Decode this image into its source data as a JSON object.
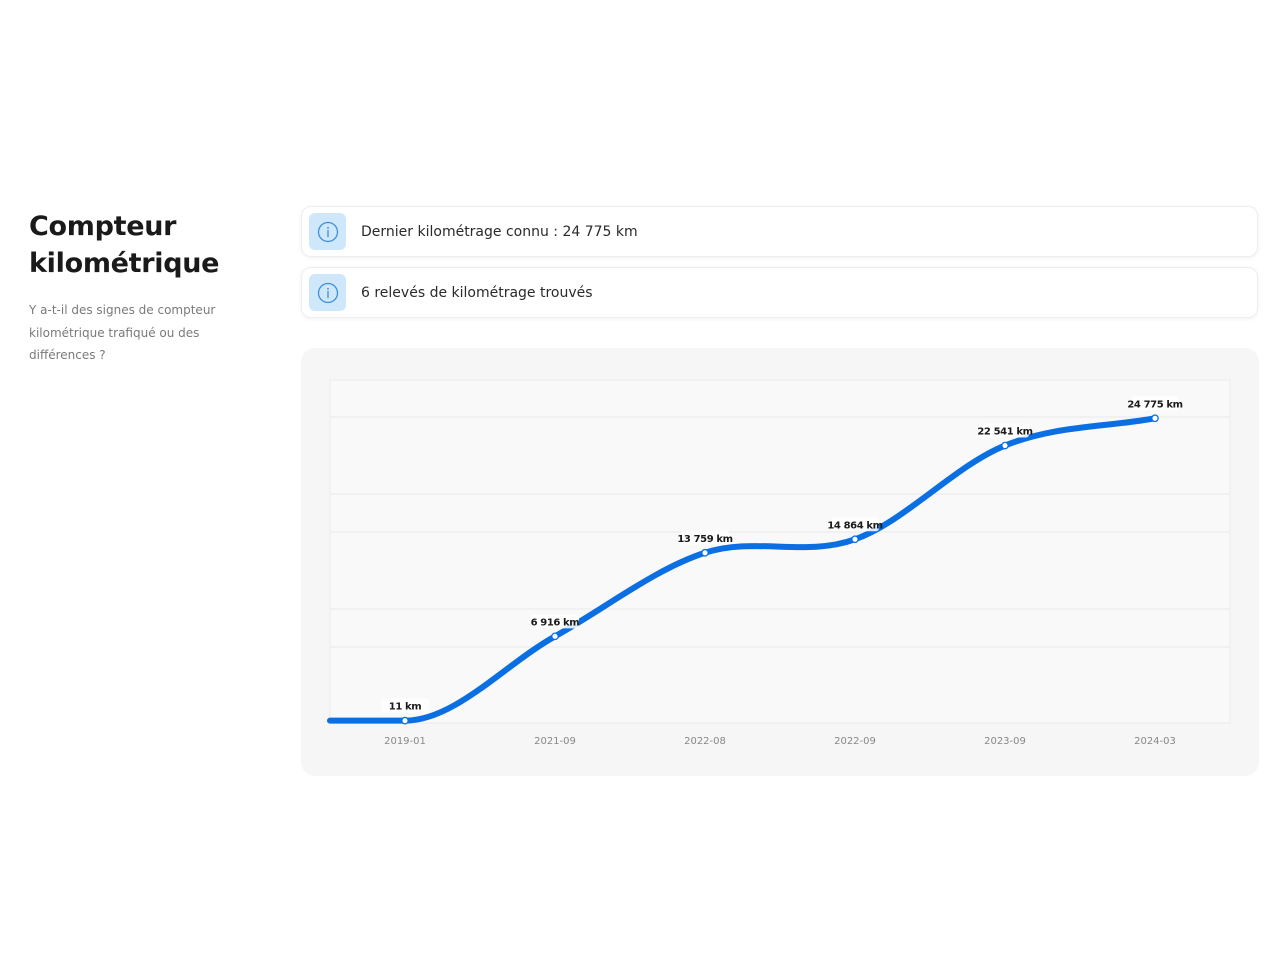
{
  "section": {
    "title_line1": "Compteur",
    "title_line2": "kilométrique",
    "description": "Y a-t-il des signes de compteur kilométrique trafiqué ou des différences ?"
  },
  "info_cards": [
    {
      "icon": "info-icon",
      "text": "Dernier kilométrage connu : 24 775 km"
    },
    {
      "icon": "info-icon",
      "text": "6 relevés de kilométrage trouvés"
    }
  ],
  "colors": {
    "line": "#0a6fe3",
    "icon_bg": "#cfe7fb",
    "icon_stroke": "#3d8fd6",
    "panel_bg": "#f6f6f6"
  },
  "chart_data": {
    "type": "line",
    "x": [
      "2019-01",
      "2021-09",
      "2022-08",
      "2022-09",
      "2023-09",
      "2024-03"
    ],
    "values": [
      11,
      6916,
      13759,
      14864,
      22541,
      24775
    ],
    "data_labels": [
      "11 km",
      "6 916 km",
      "13 759 km",
      "14 864 km",
      "22 541 km",
      "24 775 km"
    ],
    "unit": "km",
    "title": "",
    "xlabel": "",
    "ylabel": "",
    "ylim": [
      -100,
      27500
    ],
    "grid": true,
    "legend": "none"
  }
}
